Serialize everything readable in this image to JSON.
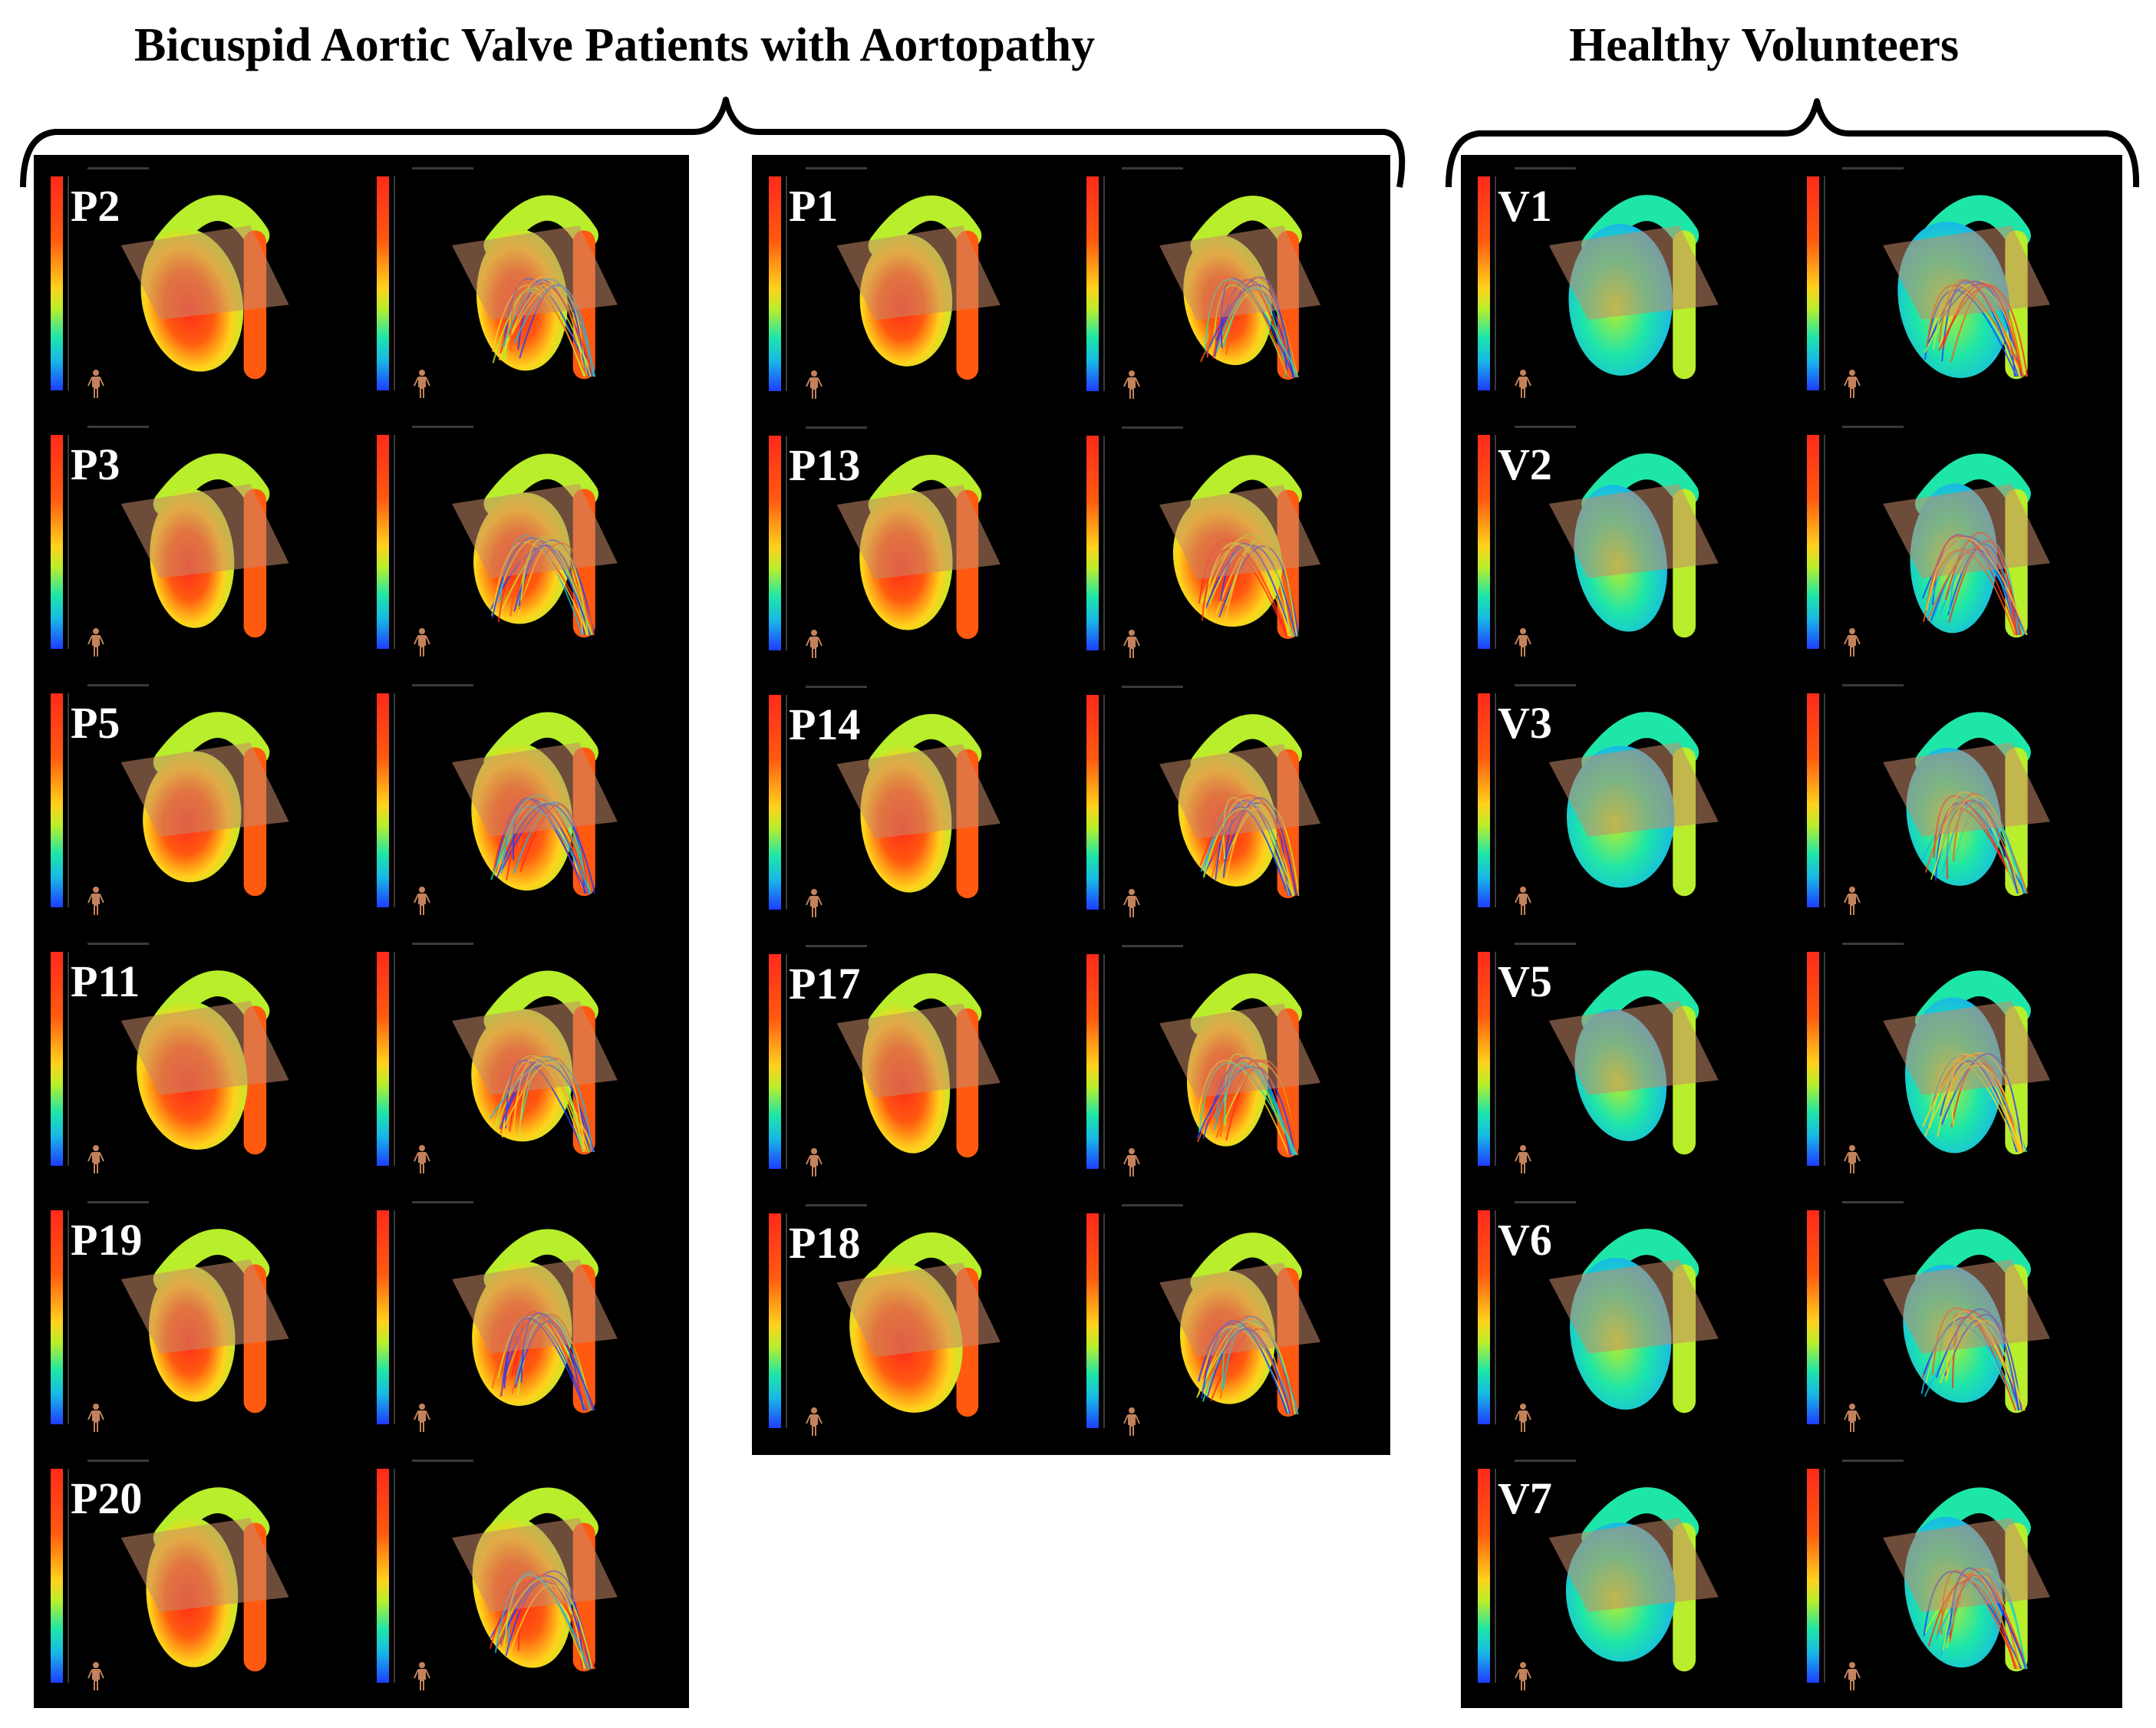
{
  "headings": {
    "bav": "Bicuspid Aortic Valve Patients with Aortopathy",
    "healthy": "Healthy Volunteers"
  },
  "panels": {
    "bav_left": {
      "rows": [
        {
          "label": "P2"
        },
        {
          "label": "P3"
        },
        {
          "label": "P5"
        },
        {
          "label": "P11"
        },
        {
          "label": "P19"
        },
        {
          "label": "P20"
        }
      ]
    },
    "bav_right": {
      "rows": [
        {
          "label": "P1"
        },
        {
          "label": "P13"
        },
        {
          "label": "P14"
        },
        {
          "label": "P17"
        },
        {
          "label": "P18"
        }
      ]
    },
    "healthy": {
      "rows": [
        {
          "label": "V1"
        },
        {
          "label": "V2"
        },
        {
          "label": "V3"
        },
        {
          "label": "V5"
        },
        {
          "label": "V6"
        },
        {
          "label": "V7"
        }
      ]
    }
  },
  "colors": {
    "panel_background": "#000000",
    "colormap": [
      "#1e3cff",
      "#18b8e6",
      "#1ee6a8",
      "#b8ee2c",
      "#ffd21c",
      "#ff5a10",
      "#ff2a1a"
    ],
    "cutting_plane": "#c98a6a"
  }
}
